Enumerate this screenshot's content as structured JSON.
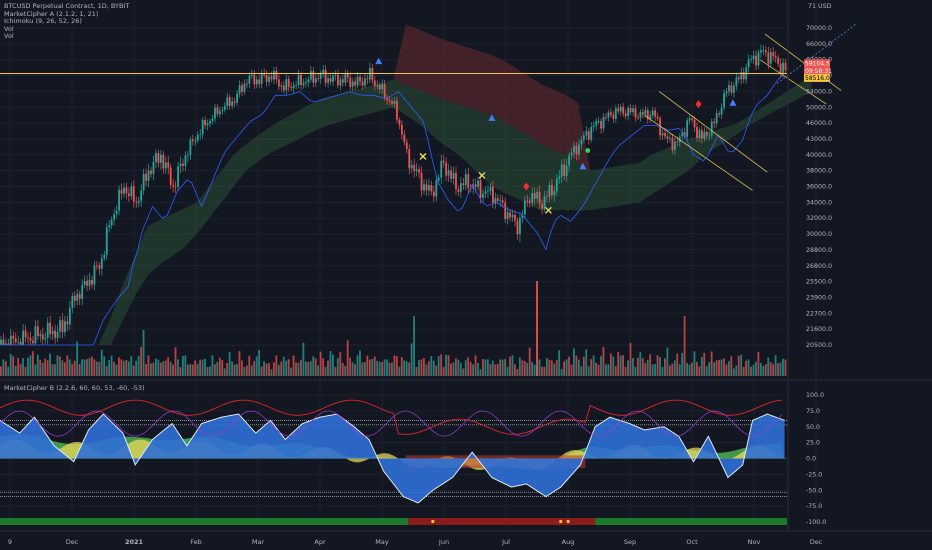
{
  "legend": {
    "title": "BTCUSD Perpetual Contract, 1D, BYBIT",
    "indicators": [
      "MarketCipher A (2.1.2, 1, 21)",
      "Ichimoku (9, 26, 52, 26)",
      "Vol",
      "Vol"
    ]
  },
  "lower_legend": "MarketCipher B (2.2.6, 60, 60, 53, -60, -53)",
  "colors": {
    "background": "#131722",
    "up": "#26a69a",
    "down": "#ef5350",
    "price_line": "#f5c542",
    "cloud_bull": "#2f5a3a",
    "cloud_bear": "#6b2a2e",
    "wave_blue": "#2f6fd6",
    "money_flow_green": "#4caf50",
    "yellow": "#f5e05a",
    "bar_green": "#1b7a2a",
    "bar_red": "#8a1c1c"
  },
  "price_labels": {
    "current": "59104.5",
    "countdown": "09:58:31",
    "level": "58516.0"
  },
  "chart_data": [
    {
      "type": "candlestick",
      "title": "BTCUSD Perpetual Contract, 1D, BYBIT",
      "y_axis": [
        "70000.0",
        "66000.0",
        "62000.0",
        "58000.0",
        "54000.0",
        "50000.0",
        "46000.0",
        "43000.0",
        "40000.0",
        "38000.0",
        "36000.0",
        "34000.0",
        "32000.0",
        "30000.0",
        "28800.0",
        "26800.0",
        "25500.0",
        "23900.0",
        "22700.0",
        "21600.0",
        "20500.0"
      ],
      "y_axis_top": "71 USD",
      "x_axis": [
        "9",
        "Dec",
        "2021",
        "Feb",
        "Mar",
        "Apr",
        "May",
        "Jun",
        "Jul",
        "Aug",
        "Sep",
        "Oct",
        "Nov",
        "Dec"
      ],
      "close_path": [
        [
          0,
          20500
        ],
        [
          25,
          21600
        ],
        [
          30,
          23900
        ],
        [
          40,
          26800
        ],
        [
          45,
          32000
        ],
        [
          50,
          36000
        ],
        [
          55,
          34000
        ],
        [
          60,
          38000
        ],
        [
          65,
          40000
        ],
        [
          70,
          36000
        ],
        [
          75,
          40000
        ],
        [
          80,
          44000
        ],
        [
          85,
          47000
        ],
        [
          90,
          50000
        ],
        [
          95,
          52000
        ],
        [
          100,
          57000
        ],
        [
          105,
          57000
        ],
        [
          110,
          58000
        ],
        [
          115,
          55000
        ],
        [
          120,
          56000
        ],
        [
          125,
          57000
        ],
        [
          130,
          58000
        ],
        [
          135,
          57000
        ],
        [
          140,
          57000
        ],
        [
          145,
          56000
        ],
        [
          150,
          58000
        ],
        [
          155,
          54000
        ],
        [
          160,
          50000
        ],
        [
          165,
          40000
        ],
        [
          170,
          37000
        ],
        [
          175,
          35000
        ],
        [
          180,
          39000
        ],
        [
          185,
          36000
        ],
        [
          190,
          36500
        ],
        [
          195,
          35500
        ],
        [
          200,
          35000
        ],
        [
          205,
          33000
        ],
        [
          210,
          31000
        ],
        [
          215,
          35000
        ],
        [
          220,
          34000
        ],
        [
          225,
          36000
        ],
        [
          230,
          39000
        ],
        [
          235,
          42000
        ],
        [
          240,
          45000
        ],
        [
          245,
          47000
        ],
        [
          250,
          49000
        ],
        [
          255,
          49000
        ],
        [
          260,
          48000
        ],
        [
          265,
          48500
        ],
        [
          270,
          43000
        ],
        [
          275,
          42000
        ],
        [
          280,
          47000
        ],
        [
          285,
          43000
        ],
        [
          290,
          46000
        ],
        [
          295,
          54000
        ],
        [
          300,
          57000
        ],
        [
          305,
          62000
        ],
        [
          310,
          64000
        ],
        [
          315,
          62000
        ],
        [
          319,
          59100
        ]
      ],
      "ichimoku_cloud_top": [
        [
          0,
          18000
        ],
        [
          40,
          19500
        ],
        [
          60,
          31000
        ],
        [
          80,
          34000
        ],
        [
          100,
          42000
        ],
        [
          130,
          52000
        ],
        [
          160,
          57000
        ],
        [
          180,
          52000
        ],
        [
          200,
          48000
        ],
        [
          220,
          42000
        ],
        [
          240,
          38000
        ],
        [
          260,
          39000
        ],
        [
          280,
          43000
        ],
        [
          300,
          46000
        ],
        [
          330,
          58000
        ]
      ],
      "ichimoku_cloud_bottom": [
        [
          0,
          17500
        ],
        [
          40,
          18500
        ],
        [
          60,
          26000
        ],
        [
          80,
          30000
        ],
        [
          100,
          38000
        ],
        [
          130,
          45000
        ],
        [
          160,
          50000
        ],
        [
          180,
          42000
        ],
        [
          200,
          36000
        ],
        [
          220,
          33000
        ],
        [
          240,
          33000
        ],
        [
          260,
          34000
        ],
        [
          280,
          38000
        ],
        [
          300,
          44000
        ],
        [
          330,
          54000
        ]
      ],
      "volume": [
        3,
        4,
        5,
        4,
        6,
        5,
        4,
        7,
        3,
        5,
        4,
        6,
        5,
        8,
        5,
        6,
        4,
        5,
        7,
        4,
        6,
        5,
        4,
        5,
        6,
        7,
        4,
        5,
        6,
        5,
        4,
        9,
        5,
        6,
        4,
        5,
        8,
        6,
        4,
        5,
        6,
        7,
        5,
        4,
        6,
        5,
        4,
        5,
        6,
        4,
        5,
        7,
        4,
        5,
        4,
        6,
        5,
        8,
        20,
        4,
        5,
        4,
        6,
        5,
        4,
        5,
        6,
        4,
        5,
        6,
        4,
        7,
        5,
        4,
        6,
        5,
        4,
        5,
        3,
        4,
        5,
        6,
        4,
        5,
        4,
        3,
        5,
        4,
        6,
        5,
        4,
        3,
        5,
        6,
        4,
        5,
        4,
        6,
        5,
        4,
        3,
        5,
        4,
        6,
        5,
        7,
        4,
        5,
        3,
        4
      ],
      "markers": [
        {
          "t": 154,
          "price": 61500,
          "shape": "triangle-blue"
        },
        {
          "t": 200,
          "price": 47200,
          "shape": "triangle-blue"
        },
        {
          "t": 237,
          "price": 38500,
          "shape": "triangle-blue"
        },
        {
          "t": 298,
          "price": 51000,
          "shape": "triangle-blue"
        },
        {
          "t": 172,
          "price": 39800,
          "shape": "x-yellow"
        },
        {
          "t": 196,
          "price": 37400,
          "shape": "x-yellow"
        },
        {
          "t": 223,
          "price": 33000,
          "shape": "x-yellow"
        },
        {
          "t": 214,
          "price": 36000,
          "shape": "diamond-red"
        },
        {
          "t": 284,
          "price": 50800,
          "shape": "diamond-red"
        },
        {
          "t": 239,
          "price": 40800,
          "shape": "dot-green"
        }
      ]
    },
    {
      "type": "area",
      "title": "MarketCipher B (2.2.6, 60, 60, 53, -60, -53)",
      "y_axis": [
        "100.0",
        "75.0",
        "50.0",
        "25.0",
        "0.0",
        "-25.0",
        "-50.0",
        "-75.0",
        "-100.0"
      ],
      "ylim": [
        -100,
        100
      ],
      "wave": [
        [
          0,
          60
        ],
        [
          8,
          40
        ],
        [
          14,
          65
        ],
        [
          22,
          20
        ],
        [
          30,
          -5
        ],
        [
          36,
          45
        ],
        [
          42,
          70
        ],
        [
          50,
          40
        ],
        [
          55,
          -10
        ],
        [
          62,
          30
        ],
        [
          70,
          55
        ],
        [
          76,
          20
        ],
        [
          82,
          55
        ],
        [
          90,
          65
        ],
        [
          97,
          70
        ],
        [
          104,
          40
        ],
        [
          110,
          60
        ],
        [
          116,
          30
        ],
        [
          123,
          55
        ],
        [
          130,
          65
        ],
        [
          137,
          70
        ],
        [
          144,
          50
        ],
        [
          150,
          30
        ],
        [
          156,
          -20
        ],
        [
          164,
          -60
        ],
        [
          170,
          -70
        ],
        [
          176,
          -50
        ],
        [
          184,
          -30
        ],
        [
          192,
          10
        ],
        [
          200,
          -30
        ],
        [
          208,
          -45
        ],
        [
          214,
          -40
        ],
        [
          222,
          -60
        ],
        [
          228,
          -45
        ],
        [
          236,
          -10
        ],
        [
          242,
          50
        ],
        [
          248,
          65
        ],
        [
          256,
          55
        ],
        [
          262,
          45
        ],
        [
          270,
          50
        ],
        [
          276,
          35
        ],
        [
          282,
          -5
        ],
        [
          288,
          35
        ],
        [
          296,
          -30
        ],
        [
          302,
          -10
        ],
        [
          306,
          60
        ],
        [
          312,
          70
        ],
        [
          319,
          60
        ]
      ],
      "money_flow": [
        [
          0,
          35
        ],
        [
          20,
          30
        ],
        [
          40,
          25
        ],
        [
          60,
          35
        ],
        [
          80,
          30
        ],
        [
          100,
          25
        ],
        [
          120,
          20
        ],
        [
          140,
          10
        ],
        [
          160,
          -5
        ],
        [
          180,
          -10
        ],
        [
          200,
          -15
        ],
        [
          220,
          -12
        ],
        [
          240,
          15
        ],
        [
          260,
          20
        ],
        [
          280,
          12
        ],
        [
          300,
          15
        ],
        [
          319,
          20
        ]
      ]
    }
  ]
}
